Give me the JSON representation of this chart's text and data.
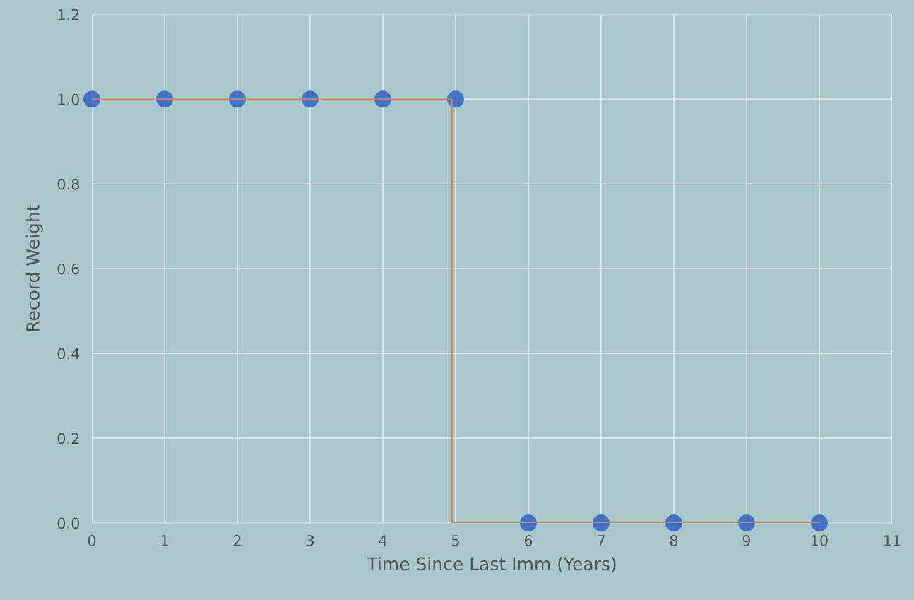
{
  "chart_data": {
    "type": "scatter",
    "xlabel": "Time Since Last Imm (Years)",
    "ylabel": "Record Weight",
    "series": [
      {
        "color": "#4472c4",
        "marker": "circle",
        "x": [
          0,
          1,
          2,
          3,
          4,
          5,
          6,
          7,
          8,
          9,
          10
        ],
        "values": [
          1,
          1,
          1,
          1,
          1,
          1,
          0,
          0,
          0,
          0,
          0
        ]
      },
      {
        "type": "line",
        "color": "#ed7d31",
        "marker": "none",
        "line_style": "solid",
        "x": [
          0,
          4.95,
          4.95,
          10
        ],
        "values": [
          1,
          1,
          0,
          0
        ]
      }
    ],
    "xlim": [
      0,
      11
    ],
    "xticks": [
      0,
      1,
      2,
      3,
      4,
      5,
      6,
      7,
      8,
      9,
      10,
      11
    ],
    "ylim": [
      0,
      1.2
    ],
    "yticks": [
      {
        "value": 0,
        "label": "0.0"
      },
      {
        "value": 0.2,
        "label": "0.2"
      },
      {
        "value": 0.4,
        "label": "0.4"
      },
      {
        "value": 0.6,
        "label": "0.6"
      },
      {
        "value": 0.8,
        "label": "0.8"
      },
      {
        "value": 1,
        "label": "1.0"
      },
      {
        "value": 1.2,
        "label": "1.2"
      }
    ],
    "grid": true,
    "legend": false
  }
}
